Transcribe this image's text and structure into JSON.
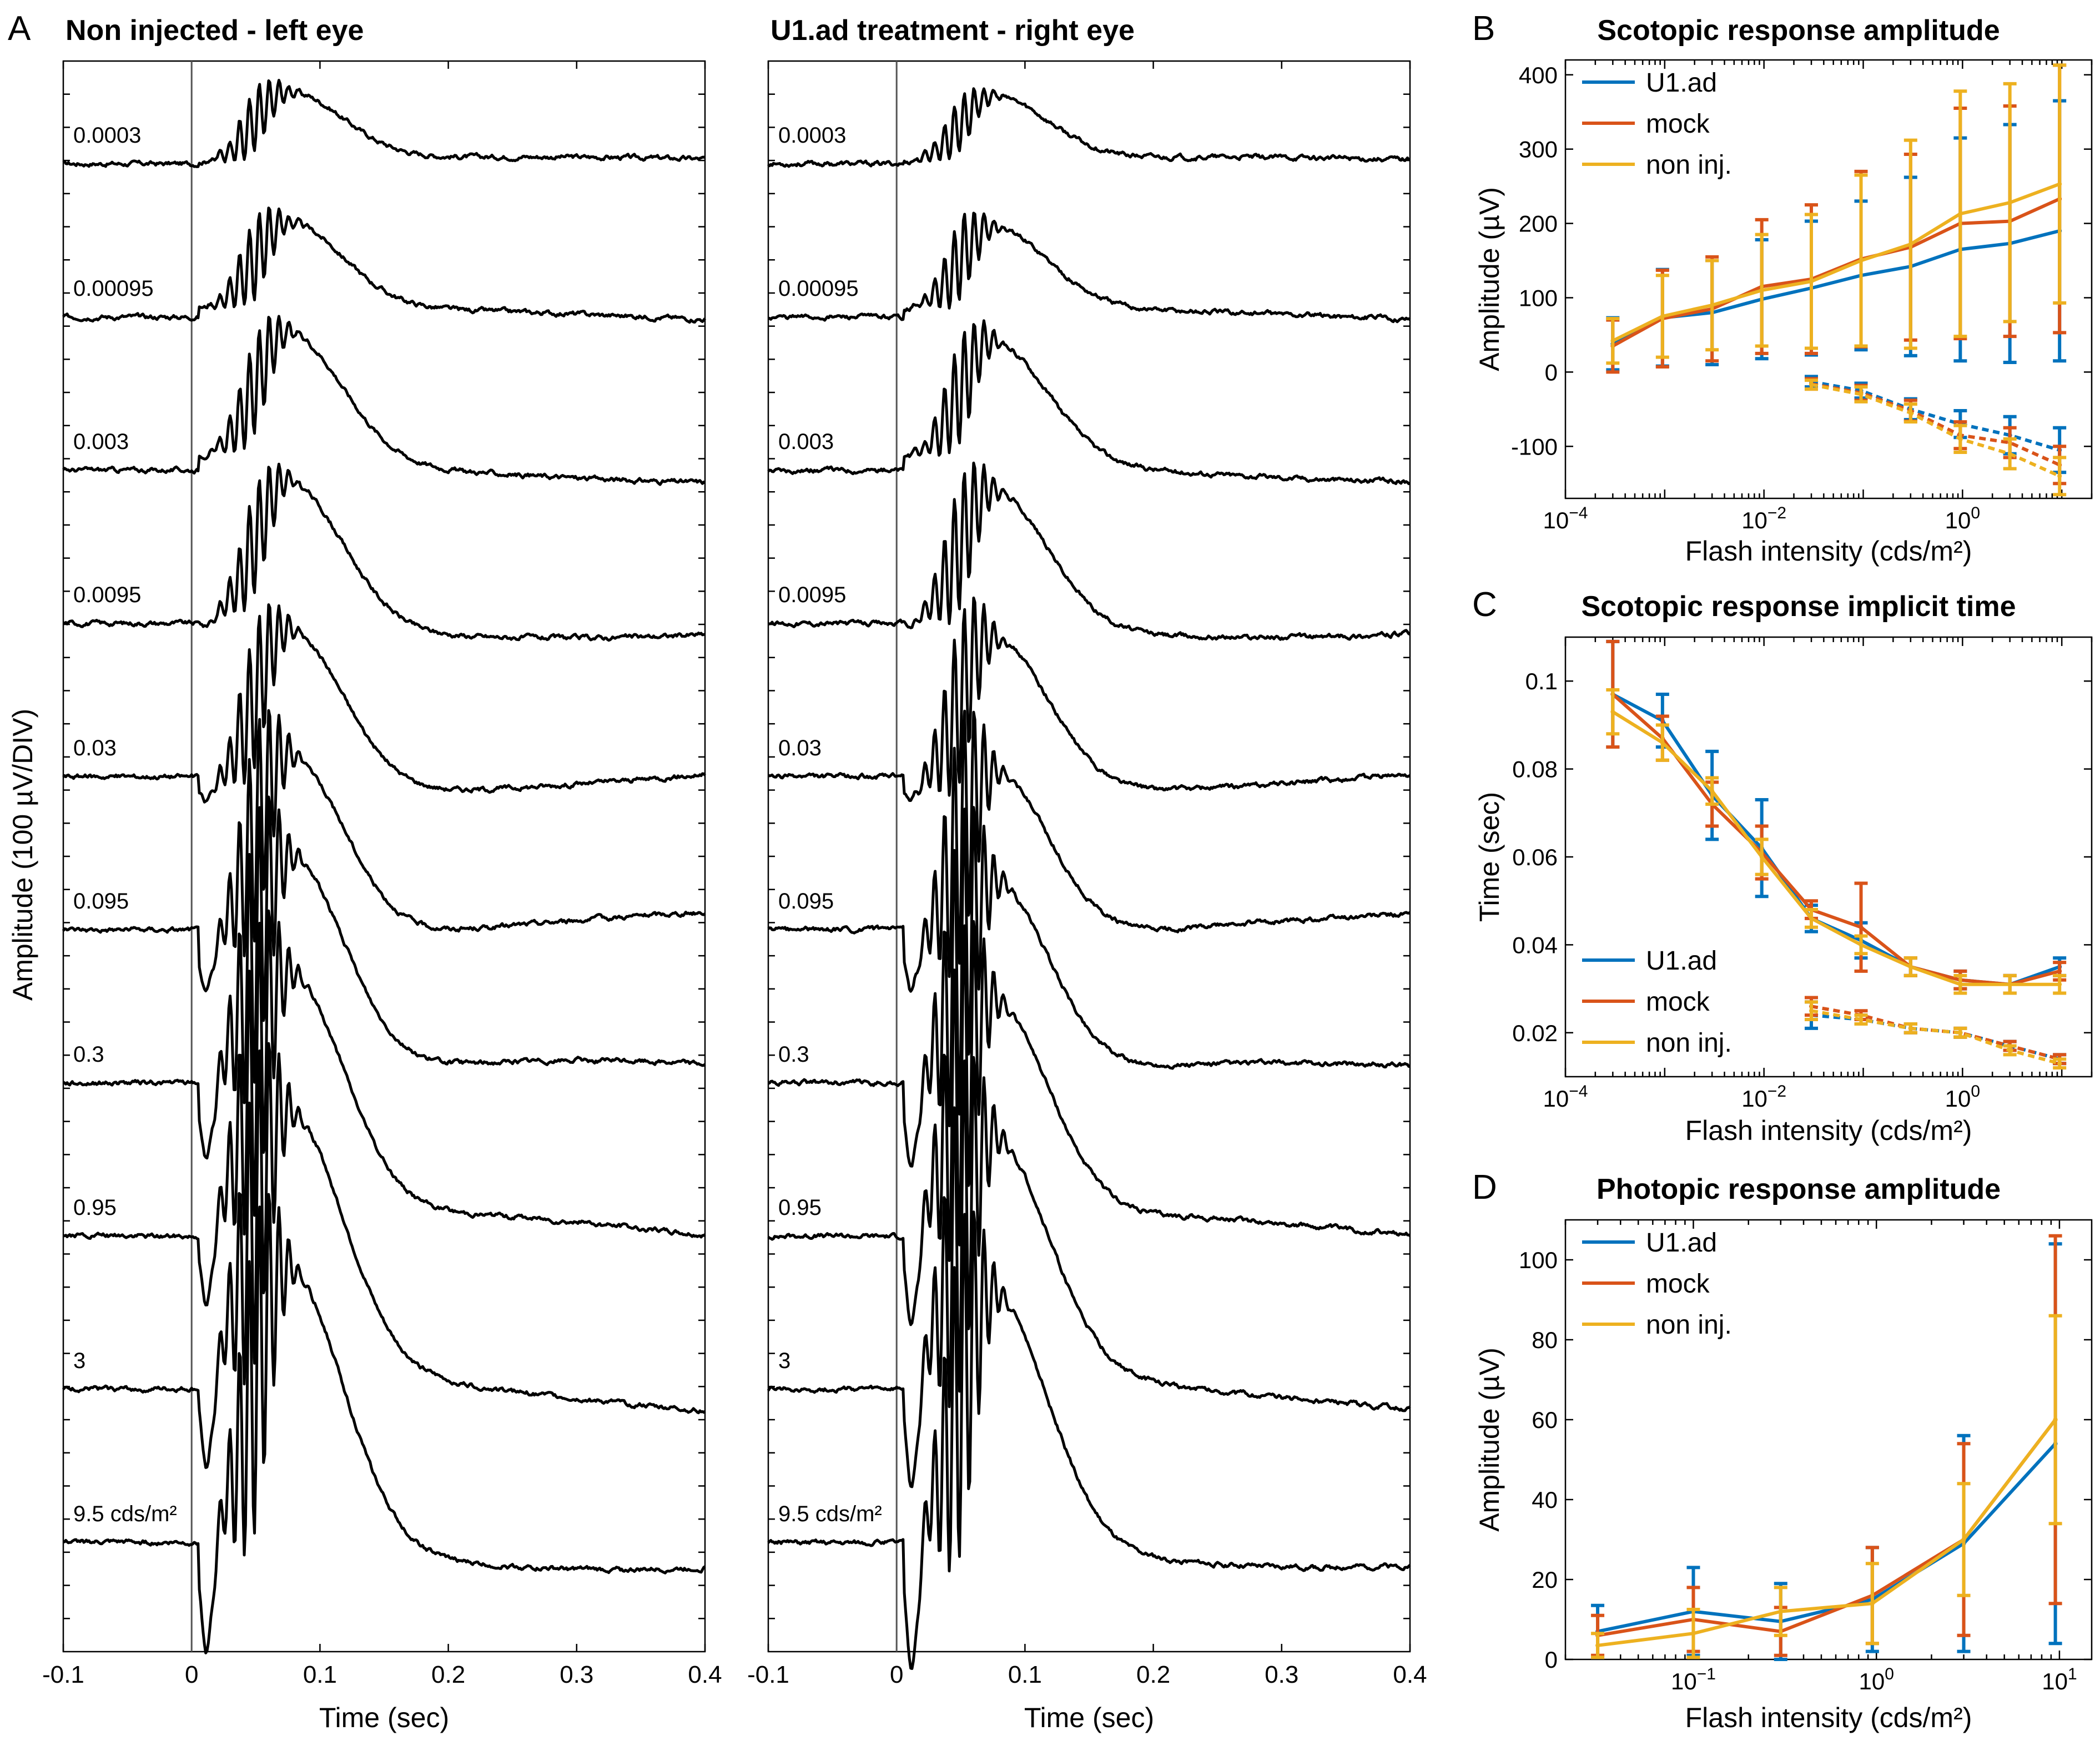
{
  "panel_letters": {
    "a": "A",
    "b": "B",
    "c": "C",
    "d": "D"
  },
  "colors": {
    "u1ad": "#0072BD",
    "mock": "#D95319",
    "noninj": "#EDB120"
  },
  "chart_data": [
    {
      "id": "A-left",
      "type": "line",
      "title": "Non injected - left eye",
      "xlabel": "Time (sec)",
      "ylabel": "Amplitude (100 µV/DIV)",
      "xlim": [
        -0.1,
        0.4
      ],
      "xticks": [
        "-0.1",
        "0",
        "0.1",
        "0.2",
        "0.3",
        "0.4"
      ],
      "vertical_line_at": 0,
      "traces": [
        {
          "label": "0.0003",
          "a_wave": 0,
          "b_wave": 80,
          "ops": 35
        },
        {
          "label": "0.00095",
          "a_wave": 0,
          "b_wave": 100,
          "ops": 45
        },
        {
          "label": "0.003",
          "a_wave": 0,
          "b_wave": 150,
          "ops": 55
        },
        {
          "label": "0.0095",
          "a_wave": 10,
          "b_wave": 170,
          "ops": 60
        },
        {
          "label": "0.03",
          "a_wave": 20,
          "b_wave": 190,
          "ops": 80
        },
        {
          "label": "0.095",
          "a_wave": 60,
          "b_wave": 220,
          "ops": 120
        },
        {
          "label": "0.3",
          "a_wave": 90,
          "b_wave": 260,
          "ops": 150
        },
        {
          "label": "0.95",
          "a_wave": 110,
          "b_wave": 280,
          "ops": 160
        },
        {
          "label": "3",
          "a_wave": 130,
          "b_wave": 300,
          "ops": 170
        },
        {
          "label": "9.5 cds/m²",
          "a_wave": 150,
          "b_wave": 320,
          "ops": 180
        }
      ]
    },
    {
      "id": "A-right",
      "type": "line",
      "title": "U1.ad treatment - right eye",
      "xlabel": "Time (sec)",
      "xlim": [
        -0.1,
        0.4
      ],
      "xticks": [
        "-0.1",
        "0",
        "0.1",
        "0.2",
        "0.3",
        "0.4"
      ],
      "vertical_line_at": 0,
      "traces": [
        {
          "label": "0.0003",
          "a_wave": 0,
          "b_wave": 75,
          "ops": 30
        },
        {
          "label": "0.00095",
          "a_wave": 0,
          "b_wave": 95,
          "ops": 45
        },
        {
          "label": "0.003",
          "a_wave": 0,
          "b_wave": 140,
          "ops": 60
        },
        {
          "label": "0.0095",
          "a_wave": 10,
          "b_wave": 160,
          "ops": 75
        },
        {
          "label": "0.03",
          "a_wave": 20,
          "b_wave": 180,
          "ops": 95
        },
        {
          "label": "0.095",
          "a_wave": 60,
          "b_wave": 200,
          "ops": 140
        },
        {
          "label": "0.3",
          "a_wave": 100,
          "b_wave": 230,
          "ops": 170
        },
        {
          "label": "0.95",
          "a_wave": 130,
          "b_wave": 250,
          "ops": 180
        },
        {
          "label": "3",
          "a_wave": 150,
          "b_wave": 270,
          "ops": 185
        },
        {
          "label": "9.5 cds/m²",
          "a_wave": 165,
          "b_wave": 290,
          "ops": 190
        }
      ]
    },
    {
      "id": "B",
      "type": "line",
      "title": "Scotopic response amplitude",
      "xlabel": "Flash intensity (cds/m²)",
      "ylabel": "Amplitude (µV)",
      "xscale": "log",
      "xlim": [
        0.0001,
        20
      ],
      "ylim": [
        -170,
        420
      ],
      "yticks": [
        -100,
        0,
        100,
        200,
        300,
        400
      ],
      "xticks_exp": [
        -4,
        -2,
        0
      ],
      "legend": "top-left",
      "legend_entries": [
        "U1.ad",
        "mock",
        "non inj."
      ],
      "x": [
        0.0003,
        0.00095,
        0.003,
        0.0095,
        0.03,
        0.095,
        0.3,
        0.95,
        3,
        9.5
      ],
      "series": [
        {
          "name": "U1.ad",
          "color": "u1ad",
          "style": "solid",
          "values": [
            38,
            73,
            80,
            98,
            113,
            130,
            142,
            165,
            173,
            190
          ],
          "err": [
            35,
            65,
            70,
            80,
            90,
            100,
            120,
            150,
            160,
            175
          ]
        },
        {
          "name": "mock",
          "color": "mock",
          "style": "solid",
          "values": [
            35,
            72,
            85,
            115,
            125,
            152,
            168,
            200,
            203,
            233
          ],
          "err": [
            35,
            65,
            70,
            90,
            100,
            118,
            125,
            155,
            155,
            180
          ]
        },
        {
          "name": "non inj.",
          "color": "noninj",
          "style": "solid",
          "values": [
            42,
            75,
            90,
            110,
            122,
            150,
            172,
            213,
            228,
            253
          ],
          "err": [
            30,
            55,
            60,
            75,
            90,
            115,
            140,
            165,
            160,
            160
          ]
        },
        {
          "name": "U1.ad",
          "color": "u1ad",
          "style": "dashed",
          "x": [
            0.03,
            0.095,
            0.3,
            0.95,
            3,
            9.5
          ],
          "values": [
            -13,
            -25,
            -50,
            -70,
            -85,
            -105
          ],
          "err": [
            7,
            10,
            14,
            18,
            25,
            30
          ]
        },
        {
          "name": "mock",
          "color": "mock",
          "style": "dashed",
          "x": [
            0.03,
            0.095,
            0.3,
            0.95,
            3,
            9.5
          ],
          "values": [
            -16,
            -28,
            -52,
            -85,
            -95,
            -125
          ],
          "err": [
            7,
            10,
            14,
            18,
            20,
            25
          ]
        },
        {
          "name": "non inj.",
          "color": "noninj",
          "style": "dashed",
          "x": [
            0.03,
            0.095,
            0.3,
            0.95,
            3,
            9.5
          ],
          "values": [
            -17,
            -30,
            -55,
            -90,
            -110,
            -140
          ],
          "err": [
            6,
            10,
            12,
            18,
            20,
            25
          ]
        }
      ]
    },
    {
      "id": "C",
      "type": "line",
      "title": "Scotopic response implicit time",
      "xlabel": "Flash intensity (cds/m²)",
      "ylabel": "Time (sec)",
      "xscale": "log",
      "xlim": [
        0.0001,
        20
      ],
      "ylim": [
        0.01,
        0.11
      ],
      "yticks": [
        0.02,
        0.04,
        0.06,
        0.08,
        0.1
      ],
      "ytick_labels": [
        "0.02",
        "0.04",
        "0.06",
        "0.08",
        "0.1"
      ],
      "xticks_exp": [
        -4,
        -2,
        0
      ],
      "legend": "bottom-left",
      "legend_entries": [
        "U1.ad",
        "mock",
        "non inj."
      ],
      "x": [
        0.0003,
        0.00095,
        0.003,
        0.0095,
        0.03,
        0.095,
        0.3,
        0.95,
        3,
        9.5
      ],
      "series": [
        {
          "name": "U1.ad",
          "color": "u1ad",
          "style": "solid",
          "values": [
            0.097,
            0.091,
            0.074,
            0.062,
            0.046,
            0.041,
            0.035,
            0.032,
            0.031,
            0.035
          ],
          "err": [
            0.012,
            0.006,
            0.01,
            0.011,
            0.003,
            0.004,
            0.002,
            0.002,
            0.002,
            0.002
          ]
        },
        {
          "name": "mock",
          "color": "mock",
          "style": "solid",
          "values": [
            0.097,
            0.087,
            0.072,
            0.061,
            0.048,
            0.044,
            0.035,
            0.032,
            0.031,
            0.034
          ],
          "err": [
            0.012,
            0.005,
            0.005,
            0.006,
            0.002,
            0.01,
            0.002,
            0.002,
            0.002,
            0.002
          ]
        },
        {
          "name": "non inj.",
          "color": "noninj",
          "style": "solid",
          "values": [
            0.093,
            0.086,
            0.075,
            0.06,
            0.046,
            0.04,
            0.035,
            0.031,
            0.031,
            0.031
          ],
          "err": [
            0.005,
            0.004,
            0.003,
            0.004,
            0.002,
            0.002,
            0.002,
            0.002,
            0.002,
            0.002
          ]
        },
        {
          "name": "U1.ad",
          "color": "u1ad",
          "style": "dashed",
          "x": [
            0.03,
            0.095,
            0.3,
            0.95,
            3,
            9.5
          ],
          "values": [
            0.024,
            0.023,
            0.021,
            0.02,
            0.017,
            0.014
          ],
          "err": [
            0.003,
            0.001,
            0.001,
            0.001,
            0.001,
            0.001
          ]
        },
        {
          "name": "mock",
          "color": "mock",
          "style": "dashed",
          "x": [
            0.03,
            0.095,
            0.3,
            0.95,
            3,
            9.5
          ],
          "values": [
            0.026,
            0.024,
            0.021,
            0.02,
            0.017,
            0.014
          ],
          "err": [
            0.002,
            0.001,
            0.001,
            0.001,
            0.001,
            0.001
          ]
        },
        {
          "name": "non inj.",
          "color": "noninj",
          "style": "dashed",
          "x": [
            0.03,
            0.095,
            0.3,
            0.95,
            3,
            9.5
          ],
          "values": [
            0.025,
            0.023,
            0.021,
            0.02,
            0.016,
            0.013
          ],
          "err": [
            0.002,
            0.001,
            0.001,
            0.001,
            0.001,
            0.001
          ]
        }
      ]
    },
    {
      "id": "D",
      "type": "line",
      "title": "Photopic response amplitude",
      "xlabel": "Flash intensity (cds/m²)",
      "ylabel": "Amplitude (µV)",
      "xscale": "log",
      "xlim": [
        0.02,
        15
      ],
      "ylim": [
        0,
        110
      ],
      "yticks": [
        0,
        20,
        40,
        60,
        80,
        100
      ],
      "xticks_exp": [
        -1,
        0,
        1
      ],
      "legend": "top-left",
      "legend_entries": [
        "U1.ad",
        "mock",
        "non inj."
      ],
      "x": [
        0.03,
        0.1,
        0.3,
        0.95,
        3,
        9.5
      ],
      "series": [
        {
          "name": "U1.ad",
          "color": "u1ad",
          "style": "solid",
          "values": [
            7,
            12,
            9.5,
            15,
            29,
            54
          ],
          "err": [
            6.5,
            11,
            9.5,
            13,
            27,
            50
          ]
        },
        {
          "name": "mock",
          "color": "mock",
          "style": "solid",
          "values": [
            6,
            10,
            7,
            16,
            30,
            60
          ],
          "err": [
            5,
            8,
            6,
            12,
            24,
            46
          ]
        },
        {
          "name": "non inj.",
          "color": "noninj",
          "style": "solid",
          "values": [
            3.5,
            6.5,
            12,
            14,
            30,
            60
          ],
          "err": [
            3,
            6,
            6,
            10,
            14,
            26
          ]
        }
      ]
    }
  ]
}
